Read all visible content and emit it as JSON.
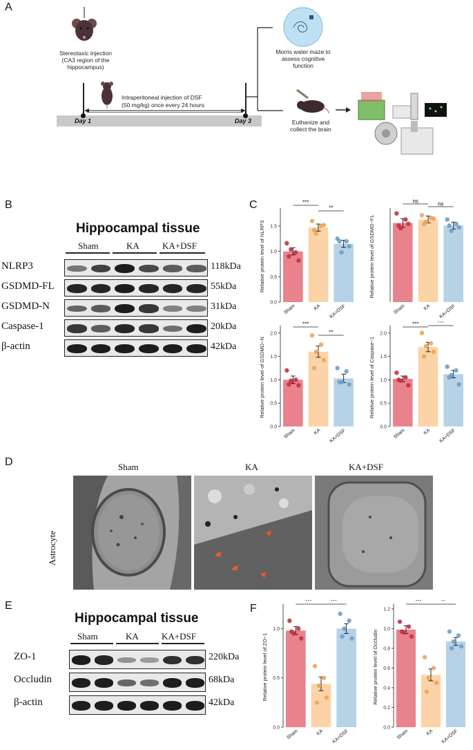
{
  "panels": {
    "A": "A",
    "B": "B",
    "C": "C",
    "D": "D",
    "E": "E",
    "F": "F"
  },
  "schematic": {
    "injection_text": "Stereotaxic injection\n(CA3 region of the\nhippocampus)",
    "ip_text_1": "Intraperitoneal injection of DSF",
    "ip_text_2": "(50 mg/kg)  once every 24 hours",
    "morris_text": "Morris water maze to\nassess cognitive\nfunction",
    "euth_text": "Euthanize and\ncollect the brain",
    "day1": "Day 1",
    "day3": "Day 3"
  },
  "blot_B": {
    "title": "Hippocampal tissue",
    "groups": [
      "Sham",
      "KA",
      "KA+DSF"
    ],
    "rows": [
      {
        "label": "NLRP3",
        "kda": "118kDa"
      },
      {
        "label": "GSDMD-FL",
        "kda": "55kDa"
      },
      {
        "label": "GSDMD-N",
        "kda": "31kDa"
      },
      {
        "label": "Caspase-1",
        "kda": "20kDa"
      },
      {
        "label": "β-actin",
        "kda": "42kDa"
      }
    ]
  },
  "em_D": {
    "columns": [
      "Sham",
      "KA",
      "KA+DSF"
    ],
    "row_label": "Astrocyte"
  },
  "blot_E": {
    "title": "Hippocampal tissue",
    "groups": [
      "Sham",
      "KA",
      "KA+DSF"
    ],
    "rows": [
      {
        "label": "ZO-1",
        "kda": "220kDa"
      },
      {
        "label": "Occludin",
        "kda": "68kDa"
      },
      {
        "label": "β-actin",
        "kda": "42kDa"
      }
    ]
  },
  "colors": {
    "sham": "#e8828c",
    "ka": "#fbd3a6",
    "dsf": "#b6d2e6",
    "sham_dot": "#c8303e",
    "ka_dot": "#f0a25a",
    "dsf_dot": "#6c9ec9"
  },
  "chart_data": [
    {
      "id": "nlrp3",
      "type": "bar",
      "ylabel": "Relative protein level of NLRP3",
      "categories": [
        "Sham",
        "KA",
        "KA+DSF"
      ],
      "values": [
        1.0,
        1.47,
        1.15
      ],
      "errors": [
        0.07,
        0.07,
        0.07
      ],
      "ylim": [
        0,
        1.8
      ],
      "yticks": [
        0.0,
        0.5,
        1.0,
        1.5
      ],
      "points": [
        [
          1.16,
          0.98,
          1.04,
          0.82,
          0.9
        ],
        [
          1.6,
          1.5,
          1.35,
          1.52,
          1.42
        ],
        [
          1.25,
          1.2,
          0.98,
          1.1,
          1.2
        ]
      ],
      "sig": [
        {
          "from": 0,
          "to": 1,
          "label": "***"
        },
        {
          "from": 1,
          "to": 2,
          "label": "**"
        }
      ]
    },
    {
      "id": "gsdmdfl",
      "type": "bar",
      "ylabel": "Relative protein level of GSDMD−FL",
      "categories": [
        "Sham",
        "KA",
        "KA+DSF"
      ],
      "values": [
        0.91,
        0.95,
        0.88
      ],
      "errors": [
        0.05,
        0.04,
        0.04
      ],
      "ylim": [
        0,
        1.05
      ],
      "yticks": [],
      "points": [
        [
          1.02,
          0.95,
          0.85,
          0.9,
          0.88
        ],
        [
          1.0,
          0.97,
          0.92,
          0.96,
          0.9
        ],
        [
          0.95,
          0.9,
          0.82,
          0.86,
          0.88
        ]
      ],
      "sig": [
        {
          "from": 0,
          "to": 1,
          "label": "ns"
        },
        {
          "from": 1,
          "to": 2,
          "label": "ns"
        }
      ]
    },
    {
      "id": "gsdmdn",
      "type": "bar",
      "ylabel": "Relative protein level of GSDMD−N",
      "categories": [
        "Sham",
        "KA",
        "KA+DSF"
      ],
      "values": [
        1.0,
        1.6,
        1.03
      ],
      "errors": [
        0.08,
        0.12,
        0.09
      ],
      "ylim": [
        0,
        2.1
      ],
      "yticks": [
        0.0,
        0.5,
        1.0,
        1.5,
        2.0
      ],
      "points": [
        [
          1.2,
          1.0,
          0.98,
          0.88,
          0.9
        ],
        [
          1.95,
          1.75,
          1.6,
          1.42,
          1.25
        ],
        [
          1.25,
          1.18,
          0.95,
          0.9,
          0.95
        ]
      ],
      "sig": [
        {
          "from": 0,
          "to": 1,
          "label": "***"
        },
        {
          "from": 1,
          "to": 2,
          "label": "**"
        }
      ]
    },
    {
      "id": "caspase1",
      "type": "bar",
      "ylabel": "Relative protein level of Caspase−1",
      "categories": [
        "Sham",
        "KA",
        "KA+DSF"
      ],
      "values": [
        1.02,
        1.7,
        1.12
      ],
      "errors": [
        0.06,
        0.1,
        0.08
      ],
      "ylim": [
        0,
        2.1
      ],
      "yticks": [
        0.0,
        0.5,
        1.0,
        1.5,
        2.0
      ],
      "points": [
        [
          1.15,
          1.05,
          0.98,
          0.88,
          1.0
        ],
        [
          2.0,
          1.78,
          1.72,
          1.6,
          1.5
        ],
        [
          1.28,
          1.2,
          1.1,
          0.9,
          1.05
        ]
      ],
      "sig": [
        {
          "from": 0,
          "to": 1,
          "label": "***"
        },
        {
          "from": 1,
          "to": 2,
          "label": "***"
        }
      ]
    },
    {
      "id": "zo1",
      "type": "bar",
      "ylabel": "Relative protein level of ZO−1",
      "categories": [
        "Sham",
        "KA",
        "KA+DSF"
      ],
      "values": [
        0.98,
        0.44,
        1.0
      ],
      "errors": [
        0.04,
        0.07,
        0.05
      ],
      "ylim": [
        0,
        1.22
      ],
      "yticks": [
        0.0,
        0.5,
        1.0
      ],
      "points": [
        [
          1.08,
          1.0,
          0.95,
          0.9,
          0.97
        ],
        [
          0.62,
          0.5,
          0.42,
          0.3,
          0.25
        ],
        [
          1.15,
          1.08,
          1.0,
          0.9,
          0.92
        ]
      ],
      "sig": [
        {
          "from": 0,
          "to": 1,
          "label": "***"
        },
        {
          "from": 1,
          "to": 2,
          "label": "***"
        }
      ]
    },
    {
      "id": "occludin",
      "type": "bar",
      "ylabel": "Relative protein level of Occludin",
      "categories": [
        "Sham",
        "KA",
        "KA+DSF"
      ],
      "values": [
        0.99,
        0.53,
        0.87
      ],
      "errors": [
        0.04,
        0.06,
        0.04
      ],
      "ylim": [
        0,
        1.22
      ],
      "yticks": [
        0.0,
        0.2,
        0.4,
        0.6,
        0.8,
        1.0,
        1.2
      ],
      "points": [
        [
          1.07,
          1.02,
          0.96,
          0.92,
          0.97
        ],
        [
          0.71,
          0.6,
          0.5,
          0.45,
          0.36
        ],
        [
          0.97,
          0.93,
          0.87,
          0.82,
          0.8
        ]
      ],
      "sig": [
        {
          "from": 0,
          "to": 1,
          "label": "***"
        },
        {
          "from": 1,
          "to": 2,
          "label": "**"
        }
      ]
    }
  ]
}
